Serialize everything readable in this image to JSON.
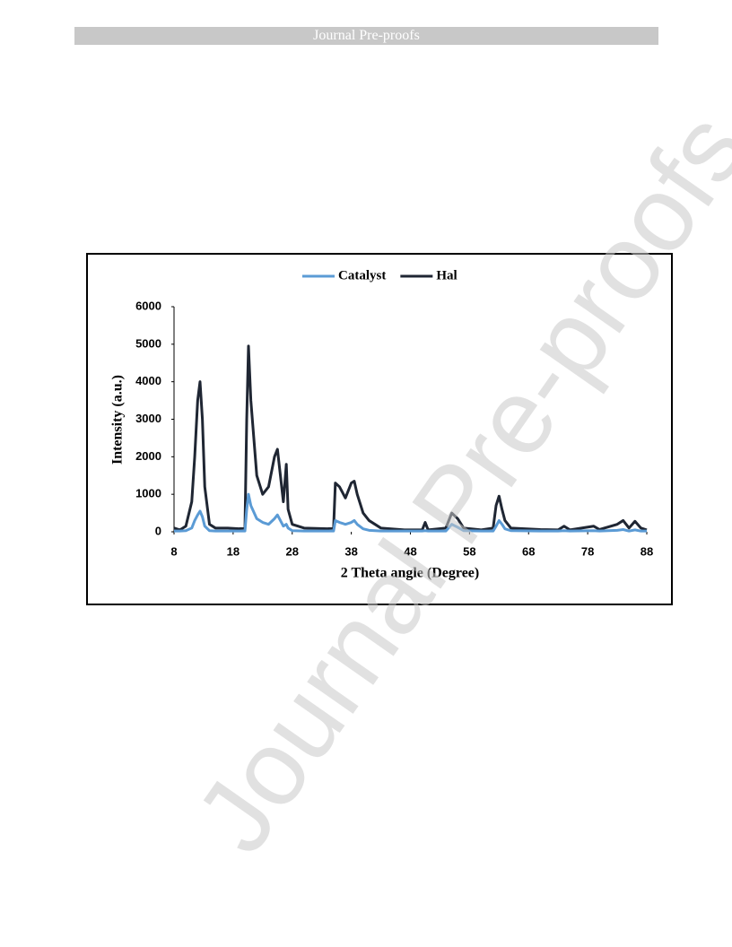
{
  "header": {
    "title": "Journal Pre-proofs"
  },
  "watermark": "Journal Pre-proofs",
  "chart_data": {
    "type": "line",
    "xlabel": "2 Theta angle (Degree)",
    "ylabel": "Intensity (a.u.)",
    "x": [
      8,
      9,
      10,
      11,
      11.5,
      12,
      12.4,
      12.8,
      13.2,
      14,
      15,
      17,
      19,
      20,
      20.3,
      20.6,
      21,
      22,
      23,
      24,
      25,
      25.5,
      26,
      26.5,
      27,
      27.3,
      28,
      30,
      34,
      35,
      35.3,
      36,
      37,
      38,
      38.5,
      39,
      40,
      41,
      43,
      47,
      50,
      50.5,
      51,
      54,
      55,
      56,
      57,
      60,
      62,
      62.5,
      63,
      63.5,
      64,
      65,
      70,
      73,
      74,
      75,
      79,
      80,
      83,
      84,
      85,
      86,
      87,
      88
    ],
    "series": [
      {
        "name": "Catalyst",
        "color": "#5b9bd5",
        "values": [
          20,
          20,
          30,
          100,
          300,
          450,
          550,
          400,
          150,
          30,
          20,
          20,
          20,
          20,
          600,
          1000,
          700,
          350,
          250,
          200,
          350,
          450,
          300,
          150,
          200,
          100,
          30,
          20,
          20,
          20,
          300,
          250,
          200,
          250,
          300,
          200,
          80,
          40,
          20,
          20,
          20,
          30,
          20,
          20,
          200,
          120,
          30,
          20,
          20,
          150,
          300,
          200,
          80,
          30,
          20,
          20,
          30,
          20,
          30,
          20,
          40,
          60,
          20,
          50,
          20,
          20
        ]
      },
      {
        "name": "Hal",
        "color": "#1f2633",
        "values": [
          100,
          50,
          150,
          800,
          2000,
          3500,
          4000,
          3000,
          1200,
          200,
          100,
          100,
          80,
          100,
          3000,
          4950,
          3500,
          1500,
          1000,
          1200,
          2000,
          2200,
          1500,
          800,
          1800,
          600,
          200,
          100,
          80,
          100,
          1300,
          1200,
          900,
          1300,
          1350,
          1000,
          500,
          300,
          100,
          50,
          50,
          250,
          50,
          100,
          500,
          350,
          100,
          50,
          100,
          700,
          950,
          600,
          300,
          100,
          60,
          50,
          150,
          50,
          150,
          60,
          200,
          300,
          100,
          280,
          100,
          50
        ]
      }
    ],
    "xlim": [
      8,
      88
    ],
    "xticks": [
      8,
      18,
      28,
      38,
      48,
      58,
      68,
      78,
      88
    ],
    "ylim": [
      0,
      6000
    ],
    "yticks": [
      0,
      1000,
      2000,
      3000,
      4000,
      5000,
      6000
    ],
    "legend": "top"
  }
}
